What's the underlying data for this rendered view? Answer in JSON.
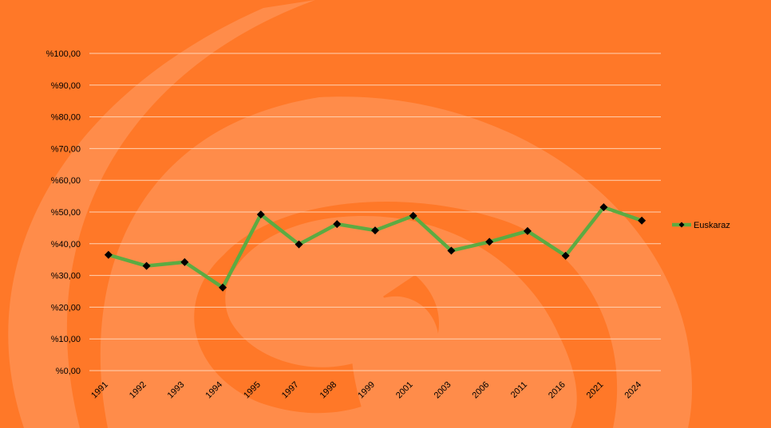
{
  "chart_data": {
    "type": "line",
    "categories": [
      "1991",
      "1992",
      "1993",
      "1994",
      "1995",
      "1997",
      "1998",
      "1999",
      "2001",
      "2003",
      "2006",
      "2011",
      "2016",
      "2021",
      "2024"
    ],
    "series": [
      {
        "name": "Euskaraz",
        "values": [
          36.5,
          33.0,
          34.2,
          26.2,
          49.2,
          39.8,
          46.2,
          44.2,
          48.8,
          37.8,
          40.6,
          44.0,
          36.2,
          51.5,
          47.3
        ],
        "color": "#5cab42",
        "marker": "diamond",
        "marker_color": "#000000"
      }
    ],
    "y_ticks": [
      "%0,00",
      "%10,00",
      "%20,00",
      "%30,00",
      "%40,00",
      "%50,00",
      "%60,00",
      "%70,00",
      "%80,00",
      "%90,00",
      "%100,00"
    ],
    "ylim": [
      0,
      100
    ],
    "grid": true,
    "legend_position": "right",
    "title": "",
    "xlabel": "",
    "ylabel": ""
  },
  "colors": {
    "background": "#ff7828",
    "swirl": "#ff8c4a",
    "gridline": "#ffd2b4",
    "series_line": "#5cab42",
    "marker": "#000000"
  },
  "background_graphic": "swirl-logo"
}
